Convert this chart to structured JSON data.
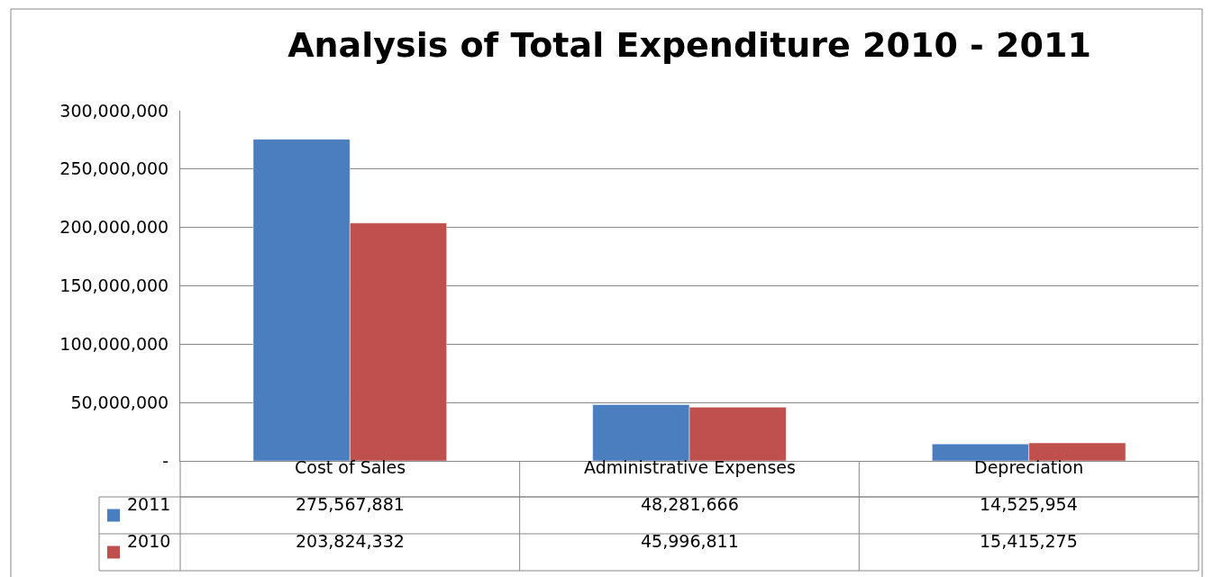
{
  "chart_data": {
    "type": "bar",
    "title": "Analysis of Total Expenditure 2010 - 2011",
    "categories": [
      "Cost of Sales",
      "Administrative Expenses",
      "Depreciation"
    ],
    "series": [
      {
        "name": "2011",
        "color": "#4a7ebf",
        "values": [
          275567881,
          48281666,
          14525954
        ],
        "value_labels": [
          "275,567,881",
          "48,281,666",
          "14,525,954"
        ]
      },
      {
        "name": "2010",
        "color": "#c0504d",
        "values": [
          203824332,
          45996811,
          15415275
        ],
        "value_labels": [
          "203,824,332",
          "45,996,811",
          "15,415,275"
        ]
      }
    ],
    "ylim": [
      0,
      300000000
    ],
    "yticks": [
      {
        "value": 0,
        "label": "-"
      },
      {
        "value": 50000000,
        "label": "50,000,000"
      },
      {
        "value": 100000000,
        "label": "100,000,000"
      },
      {
        "value": 150000000,
        "label": "150,000,000"
      },
      {
        "value": 200000000,
        "label": "200,000,000"
      },
      {
        "value": 250000000,
        "label": "250,000,000"
      },
      {
        "value": 300000000,
        "label": "300,000,000"
      }
    ],
    "grid": "y",
    "legend": "bottom left"
  }
}
